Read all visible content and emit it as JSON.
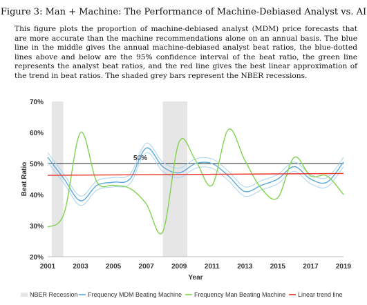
{
  "figure": {
    "title": "Figure 3: Man + Machine: The Performance of Machine-Debiased Analyst vs. AI",
    "description": "This figure plots the proportion of machine-debiased analyst (MDM) price forecasts that are more accurate than the machine recommendations alone on an annual basis. The blue line in the middle gives the annual machine-debiased analyst beat ratios, the blue-dotted lines above and below are the 95% confidence interval of the beat ratio, the green line represents the analyst beat ratios, and the red line gives the best linear approximation of the trend in beat ratios. The shaded grey bars represent the NBER recessions."
  },
  "chart_data": {
    "type": "line",
    "xlabel": "Year",
    "ylabel": "Beat Ratio",
    "xlim": [
      2001,
      2019
    ],
    "ylim": [
      20,
      70
    ],
    "x_ticks": [
      "2001",
      "2003",
      "2005",
      "2007",
      "2009",
      "2011",
      "2013",
      "2015",
      "2017",
      "2019"
    ],
    "y_ticks": [
      "20%",
      "30%",
      "40%",
      "50%",
      "60%",
      "70%"
    ],
    "reference_label": "50%",
    "recessions": [
      [
        2001.25,
        2001.95
      ],
      [
        2008.0,
        2009.5
      ]
    ],
    "series": [
      {
        "name": "Frequency MDM Beating Machine",
        "color": "#5aa9dc",
        "x": [
          2001,
          2002,
          2003,
          2004,
          2005,
          2006,
          2007,
          2008,
          2009,
          2010,
          2011,
          2012,
          2013,
          2014,
          2015,
          2016,
          2017,
          2018,
          2019
        ],
        "y": [
          52,
          45,
          38,
          43,
          44,
          45,
          55,
          49,
          47,
          50,
          50,
          46,
          41,
          43,
          45,
          49,
          45,
          44,
          50.5
        ]
      },
      {
        "name": "CI upper",
        "color": "#a6d3ef",
        "x": [
          2001,
          2002,
          2003,
          2004,
          2005,
          2006,
          2007,
          2008,
          2009,
          2010,
          2011,
          2012,
          2013,
          2014,
          2015,
          2016,
          2017,
          2018,
          2019
        ],
        "y": [
          53.5,
          46.5,
          39.5,
          44.5,
          45.5,
          46.5,
          56.5,
          50.5,
          48.5,
          51.5,
          51.5,
          47.5,
          42.5,
          44.5,
          46.5,
          50.5,
          46.5,
          45.5,
          52
        ]
      },
      {
        "name": "CI lower",
        "color": "#a6d3ef",
        "x": [
          2001,
          2002,
          2003,
          2004,
          2005,
          2006,
          2007,
          2008,
          2009,
          2010,
          2011,
          2012,
          2013,
          2014,
          2015,
          2016,
          2017,
          2018,
          2019
        ],
        "y": [
          50.5,
          43.5,
          36.5,
          41.5,
          42.5,
          43.5,
          53.5,
          47.5,
          45.5,
          48.5,
          48.5,
          44.5,
          39.5,
          41.5,
          43.5,
          47.5,
          43.5,
          42.5,
          49
        ]
      },
      {
        "name": "Frequency Man Beating Machine",
        "color": "#7fd34e",
        "x": [
          2001,
          2002,
          2003,
          2004,
          2005,
          2006,
          2007,
          2008,
          2009,
          2010,
          2011,
          2012,
          2013,
          2014,
          2015,
          2016,
          2017,
          2018,
          2019
        ],
        "y": [
          29.5,
          34,
          60,
          44,
          43,
          42,
          37,
          28,
          57,
          51,
          43,
          61,
          51,
          42,
          39,
          52,
          46,
          46,
          40
        ]
      },
      {
        "name": "Linear trend line",
        "color": "#e8312a",
        "x": [
          2001,
          2019
        ],
        "y": [
          46.2,
          46.8
        ]
      }
    ],
    "legend": [
      "NBER Recession",
      "Frequency MDM Beating Machine",
      "Frequency Man Beating Machine",
      "Linear trend line"
    ],
    "legend_colors": [
      "#e6e6e6",
      "#5aa9dc",
      "#7fd34e",
      "#e8312a"
    ],
    "legend_position": "bottom"
  }
}
